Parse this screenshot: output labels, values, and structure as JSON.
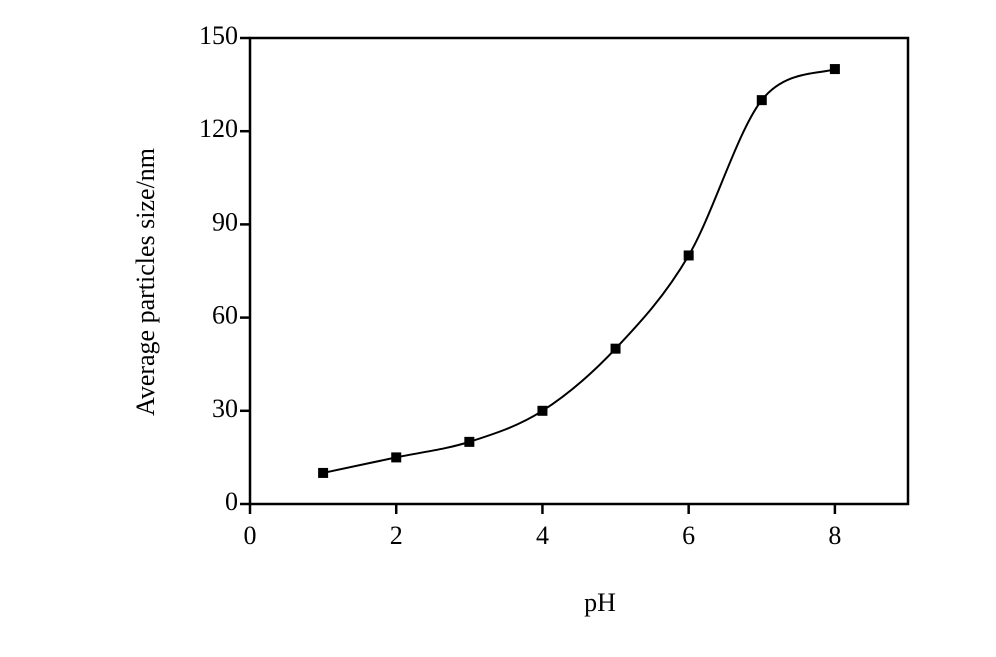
{
  "chart_data": {
    "type": "scatter",
    "x_label": "pH",
    "y_label": "Average particles size/nm",
    "x": [
      1,
      2,
      3,
      4,
      5,
      6,
      7,
      8
    ],
    "values": [
      10,
      15,
      20,
      30,
      50,
      80,
      130,
      140
    ],
    "color": "#000000",
    "trend_line": true,
    "xlim": [
      0,
      9
    ],
    "xticks": [
      0,
      2,
      4,
      6,
      8
    ],
    "ylim": [
      0,
      150
    ],
    "yticks": [
      0,
      30,
      60,
      90,
      120,
      150
    ]
  }
}
